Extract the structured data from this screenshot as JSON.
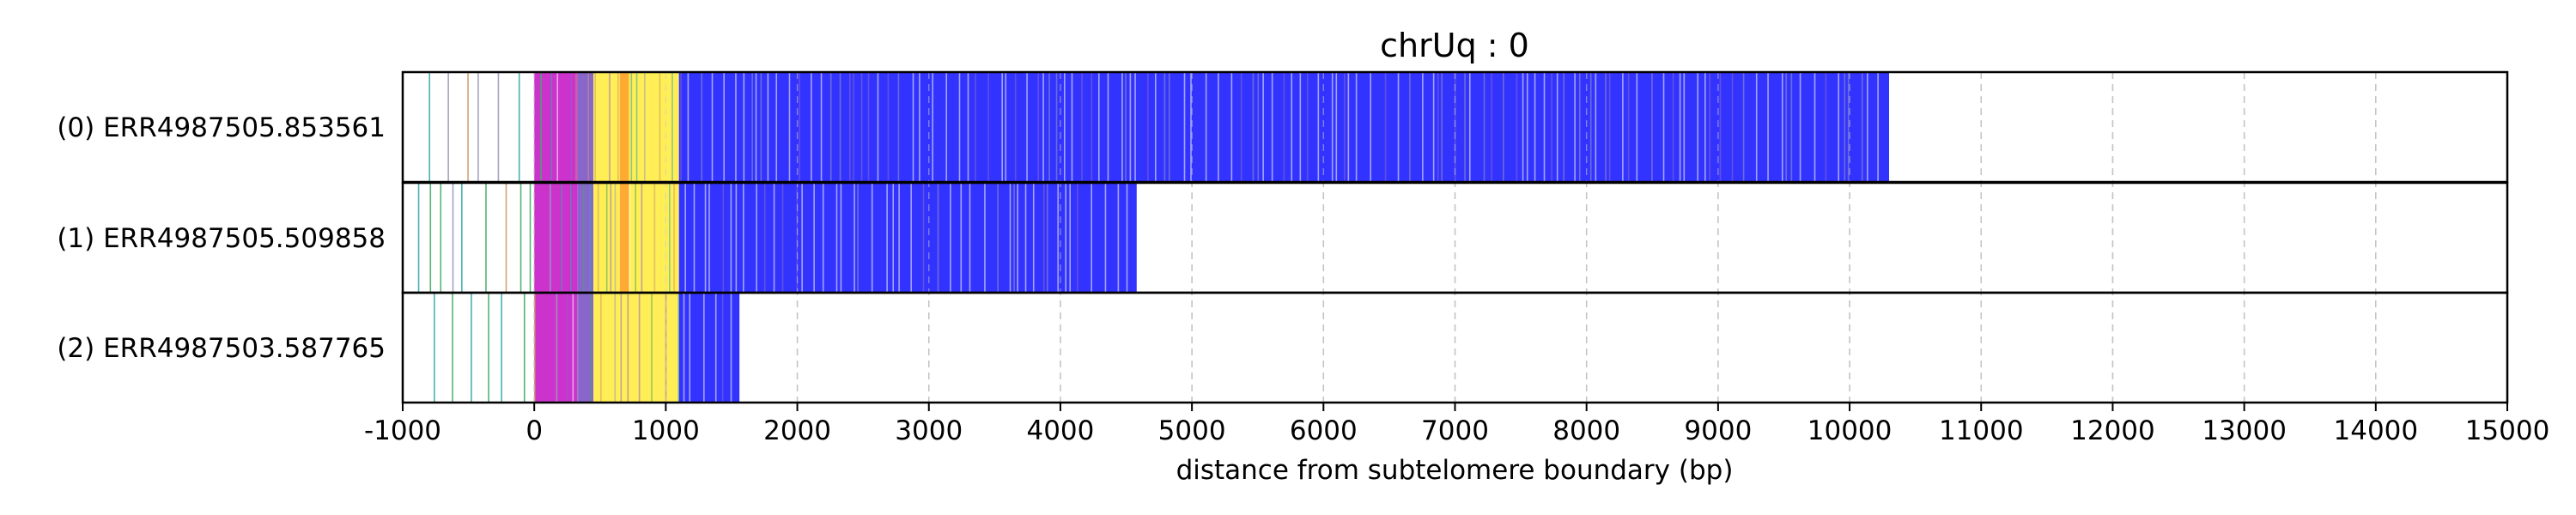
{
  "chart_data": {
    "type": "bar",
    "title": "chrUq : 0",
    "xlabel": "distance from subtelomere boundary (bp)",
    "ylabel": "",
    "xlim": [
      -1000,
      15000
    ],
    "x_ticks": [
      -1000,
      0,
      1000,
      2000,
      3000,
      4000,
      5000,
      6000,
      7000,
      8000,
      9000,
      10000,
      11000,
      12000,
      13000,
      14000,
      15000
    ],
    "grid": "vertical dashed at x ticks",
    "legend": "none",
    "colors": {
      "blue": "#3333ff",
      "yellow": "#ffee55",
      "orange": "#ffaa33",
      "magenta": "#cc33cc",
      "purple": "#8866cc",
      "green": "#44aa66",
      "teal": "#33aaaa",
      "tan": "#cc9966",
      "gray": "#9999bb"
    },
    "reads": [
      {
        "label": "(0) ERR4987505.853561",
        "end": 10300,
        "segments": [
          {
            "start": -1000,
            "end": 0,
            "color": "white"
          },
          {
            "start": 0,
            "end": 330,
            "color": "magenta"
          },
          {
            "start": 330,
            "end": 450,
            "color": "purple"
          },
          {
            "start": 450,
            "end": 650,
            "color": "yellow"
          },
          {
            "start": 650,
            "end": 720,
            "color": "orange"
          },
          {
            "start": 720,
            "end": 1100,
            "color": "yellow"
          },
          {
            "start": 1100,
            "end": 10300,
            "color": "blue"
          }
        ]
      },
      {
        "label": "(1) ERR4987505.509858",
        "end": 4580,
        "segments": [
          {
            "start": -1000,
            "end": 0,
            "color": "white"
          },
          {
            "start": 0,
            "end": 330,
            "color": "magenta"
          },
          {
            "start": 330,
            "end": 450,
            "color": "purple"
          },
          {
            "start": 450,
            "end": 650,
            "color": "yellow"
          },
          {
            "start": 650,
            "end": 720,
            "color": "orange"
          },
          {
            "start": 720,
            "end": 1100,
            "color": "yellow"
          },
          {
            "start": 1100,
            "end": 4580,
            "color": "blue"
          }
        ]
      },
      {
        "label": "(2) ERR4987503.587765",
        "end": 1560,
        "segments": [
          {
            "start": -1000,
            "end": 0,
            "color": "white"
          },
          {
            "start": 0,
            "end": 330,
            "color": "magenta"
          },
          {
            "start": 330,
            "end": 450,
            "color": "purple"
          },
          {
            "start": 450,
            "end": 1100,
            "color": "yellow"
          },
          {
            "start": 1100,
            "end": 1560,
            "color": "blue"
          }
        ]
      }
    ]
  }
}
